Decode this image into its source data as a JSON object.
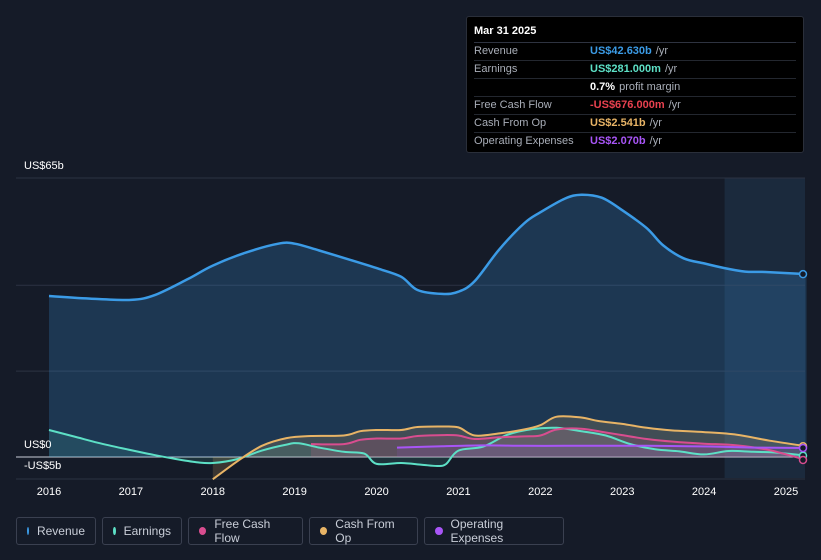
{
  "tooltip": {
    "date": "Mar 31 2025",
    "rows": [
      {
        "label": "Revenue",
        "value": "US$42.630b",
        "unit": "/yr",
        "color": "#3b9be6"
      },
      {
        "label": "Earnings",
        "value": "US$281.000m",
        "unit": "/yr",
        "color": "#5de0c6"
      },
      {
        "label": "",
        "value": "0.7%",
        "unit": "profit margin",
        "color": "#ffffff"
      },
      {
        "label": "Free Cash Flow",
        "value": "-US$676.000m",
        "unit": "/yr",
        "color": "#e8414f"
      },
      {
        "label": "Cash From Op",
        "value": "US$2.541b",
        "unit": "/yr",
        "color": "#e8b466"
      },
      {
        "label": "Operating Expenses",
        "value": "US$2.070b",
        "unit": "/yr",
        "color": "#a855f7"
      }
    ]
  },
  "chart_data": {
    "type": "area",
    "title": "",
    "xlabel": "",
    "ylabel": "",
    "y_top_label": "US$65b",
    "y_zero_label": "US$0",
    "y_bottom_label": "-US$5b",
    "ylim": [
      -5,
      65
    ],
    "xlim": [
      2015.6,
      2025.25
    ],
    "x_ticks": [
      "2016",
      "2017",
      "2018",
      "2019",
      "2020",
      "2021",
      "2022",
      "2023",
      "2024",
      "2025"
    ],
    "series": [
      {
        "name": "Revenue",
        "color": "#3b9be6",
        "points": [
          [
            2016.0,
            37.5
          ],
          [
            2016.5,
            36.9
          ],
          [
            2017.0,
            36.6
          ],
          [
            2017.3,
            37.8
          ],
          [
            2017.7,
            41.5
          ],
          [
            2018.0,
            44.6
          ],
          [
            2018.4,
            47.6
          ],
          [
            2018.8,
            49.7
          ],
          [
            2019.0,
            49.7
          ],
          [
            2019.3,
            48.1
          ],
          [
            2019.7,
            45.8
          ],
          [
            2020.0,
            44.0
          ],
          [
            2020.3,
            42.0
          ],
          [
            2020.5,
            38.9
          ],
          [
            2020.8,
            38.0
          ],
          [
            2021.0,
            38.5
          ],
          [
            2021.2,
            41.0
          ],
          [
            2021.5,
            48.4
          ],
          [
            2021.8,
            54.4
          ],
          [
            2022.0,
            57.0
          ],
          [
            2022.3,
            60.2
          ],
          [
            2022.5,
            61.1
          ],
          [
            2022.75,
            60.4
          ],
          [
            2023.0,
            57.5
          ],
          [
            2023.3,
            53.3
          ],
          [
            2023.5,
            49.3
          ],
          [
            2023.75,
            46.3
          ],
          [
            2024.0,
            45.1
          ],
          [
            2024.25,
            44.0
          ],
          [
            2024.5,
            43.2
          ],
          [
            2024.75,
            43.1
          ],
          [
            2025.25,
            42.6
          ]
        ]
      },
      {
        "name": "Earnings",
        "color": "#5de0c6",
        "points": [
          [
            2016.0,
            6.3
          ],
          [
            2016.3,
            4.8
          ],
          [
            2016.6,
            3.3
          ],
          [
            2016.9,
            2.0
          ],
          [
            2017.2,
            0.8
          ],
          [
            2017.5,
            -0.3
          ],
          [
            2017.8,
            -1.2
          ],
          [
            2018.0,
            -1.4
          ],
          [
            2018.3,
            -0.5
          ],
          [
            2018.6,
            1.5
          ],
          [
            2018.9,
            2.9
          ],
          [
            2019.05,
            3.2
          ],
          [
            2019.3,
            2.2
          ],
          [
            2019.6,
            1.2
          ],
          [
            2019.85,
            0.8
          ],
          [
            2020.0,
            -1.6
          ],
          [
            2020.3,
            -1.4
          ],
          [
            2020.55,
            -1.8
          ],
          [
            2020.75,
            -2.1
          ],
          [
            2020.85,
            -1.6
          ],
          [
            2021.0,
            1.5
          ],
          [
            2021.3,
            2.4
          ],
          [
            2021.6,
            5.2
          ],
          [
            2021.9,
            6.5
          ],
          [
            2022.2,
            6.8
          ],
          [
            2022.5,
            6.0
          ],
          [
            2022.8,
            5.0
          ],
          [
            2023.1,
            3.0
          ],
          [
            2023.4,
            1.8
          ],
          [
            2023.7,
            1.3
          ],
          [
            2024.0,
            0.6
          ],
          [
            2024.3,
            1.4
          ],
          [
            2024.6,
            1.2
          ],
          [
            2024.9,
            1.0
          ],
          [
            2025.25,
            0.3
          ]
        ]
      },
      {
        "name": "Free Cash Flow",
        "color": "#d94d8f",
        "points": [
          [
            2019.2,
            3.0
          ],
          [
            2019.6,
            3.0
          ],
          [
            2019.8,
            4.0
          ],
          [
            2020.0,
            4.3
          ],
          [
            2020.3,
            4.3
          ],
          [
            2020.5,
            4.9
          ],
          [
            2020.8,
            5.1
          ],
          [
            2021.0,
            5.0
          ],
          [
            2021.2,
            4.2
          ],
          [
            2021.5,
            4.6
          ],
          [
            2021.8,
            4.8
          ],
          [
            2022.0,
            5.0
          ],
          [
            2022.2,
            6.4
          ],
          [
            2022.5,
            6.6
          ],
          [
            2022.8,
            5.7
          ],
          [
            2023.0,
            5.1
          ],
          [
            2023.3,
            4.2
          ],
          [
            2023.6,
            3.6
          ],
          [
            2024.0,
            3.1
          ],
          [
            2024.4,
            2.7
          ],
          [
            2024.8,
            1.6
          ],
          [
            2025.25,
            -0.7
          ]
        ]
      },
      {
        "name": "Cash From Op",
        "color": "#e8b466",
        "points": [
          [
            2018.0,
            -5.2
          ],
          [
            2018.3,
            -1.0
          ],
          [
            2018.6,
            2.6
          ],
          [
            2018.9,
            4.4
          ],
          [
            2019.2,
            4.9
          ],
          [
            2019.6,
            5.0
          ],
          [
            2019.8,
            6.0
          ],
          [
            2020.0,
            6.3
          ],
          [
            2020.3,
            6.3
          ],
          [
            2020.5,
            7.0
          ],
          [
            2020.8,
            7.1
          ],
          [
            2021.0,
            6.9
          ],
          [
            2021.2,
            5.0
          ],
          [
            2021.5,
            5.5
          ],
          [
            2021.8,
            6.4
          ],
          [
            2022.0,
            7.4
          ],
          [
            2022.2,
            9.4
          ],
          [
            2022.5,
            9.2
          ],
          [
            2022.7,
            8.4
          ],
          [
            2023.0,
            7.7
          ],
          [
            2023.3,
            6.8
          ],
          [
            2023.6,
            6.2
          ],
          [
            2024.0,
            5.8
          ],
          [
            2024.4,
            5.2
          ],
          [
            2024.8,
            3.8
          ],
          [
            2025.25,
            2.5
          ]
        ]
      },
      {
        "name": "Operating Expenses",
        "color": "#a855f7",
        "points": [
          [
            2020.25,
            2.2
          ],
          [
            2020.8,
            2.5
          ],
          [
            2021.3,
            2.7
          ],
          [
            2021.8,
            2.6
          ],
          [
            2022.3,
            2.6
          ],
          [
            2022.8,
            2.6
          ],
          [
            2023.3,
            2.6
          ],
          [
            2023.8,
            2.5
          ],
          [
            2024.2,
            2.4
          ],
          [
            2024.6,
            2.2
          ],
          [
            2025.25,
            2.1
          ]
        ]
      }
    ],
    "forecast_start": 2024.25
  },
  "legend": [
    {
      "label": "Revenue",
      "color": "#3b9be6"
    },
    {
      "label": "Earnings",
      "color": "#5de0c6"
    },
    {
      "label": "Free Cash Flow",
      "color": "#d94d8f"
    },
    {
      "label": "Cash From Op",
      "color": "#e8b466"
    },
    {
      "label": "Operating Expenses",
      "color": "#a855f7"
    }
  ]
}
